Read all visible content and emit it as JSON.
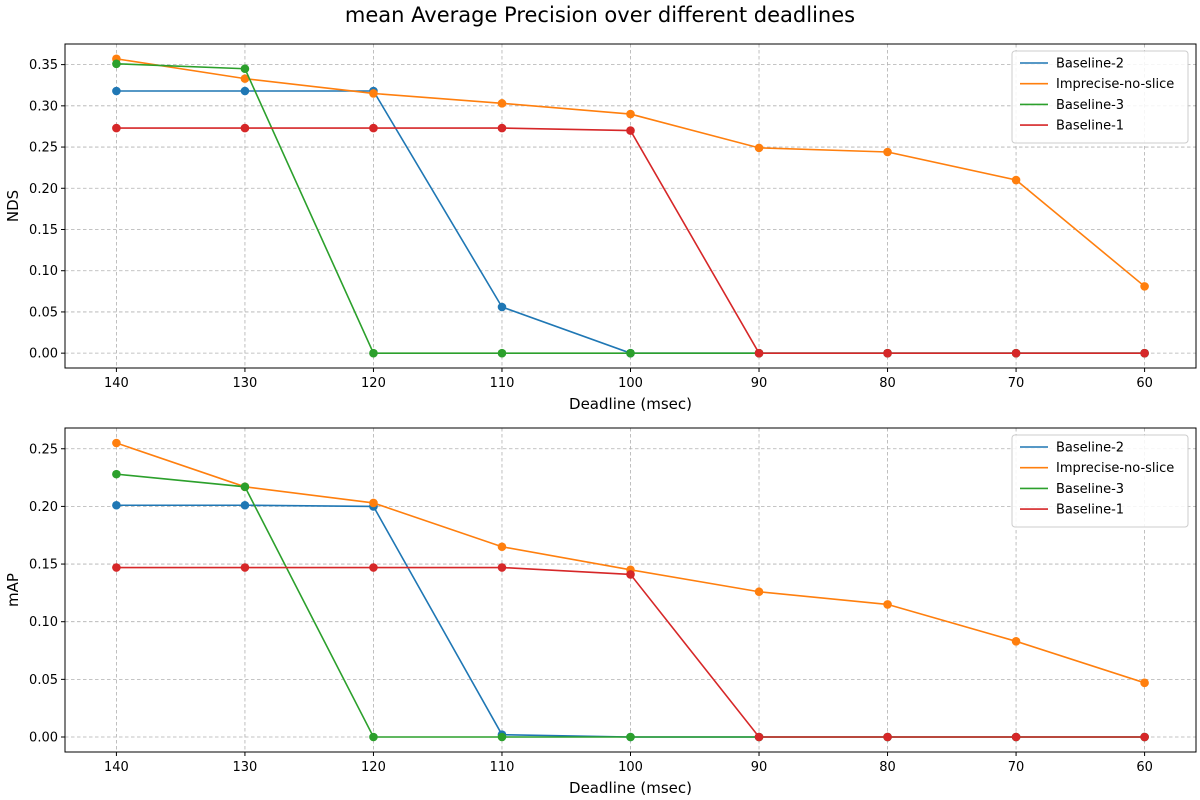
{
  "title": "mean Average Precision over different deadlines",
  "series_colors": {
    "Baseline-2": "#1f77b4",
    "Imprecise-no-slice": "#ff7f0e",
    "Baseline-3": "#2ca02c",
    "Baseline-1": "#d62728"
  },
  "chart_data": [
    {
      "type": "line",
      "xlabel": "Deadline (msec)",
      "ylabel": "NDS",
      "x": [
        140,
        130,
        120,
        110,
        100,
        90,
        80,
        70,
        60
      ],
      "x_tick_labels": [
        "140",
        "130",
        "120",
        "110",
        "100",
        "90",
        "80",
        "70",
        "60"
      ],
      "x_inverted": true,
      "ylim": [
        -0.018,
        0.375
      ],
      "y_ticks": [
        0.0,
        0.05,
        0.1,
        0.15,
        0.2,
        0.25,
        0.3,
        0.35
      ],
      "y_tick_labels": [
        "0.00",
        "0.05",
        "0.10",
        "0.15",
        "0.20",
        "0.25",
        "0.30",
        "0.35"
      ],
      "grid": true,
      "legend_position": "top-right",
      "series": [
        {
          "name": "Baseline-2",
          "values": [
            0.318,
            0.318,
            0.318,
            0.056,
            0.0,
            0.0,
            0.0,
            0.0,
            0.0
          ]
        },
        {
          "name": "Imprecise-no-slice",
          "values": [
            0.357,
            0.333,
            0.315,
            0.303,
            0.29,
            0.249,
            0.244,
            0.21,
            0.081
          ]
        },
        {
          "name": "Baseline-3",
          "values": [
            0.351,
            0.345,
            0.0,
            0.0,
            0.0,
            0.0,
            0.0,
            0.0,
            0.0
          ]
        },
        {
          "name": "Baseline-1",
          "values": [
            0.273,
            0.273,
            0.273,
            0.273,
            0.27,
            0.0,
            0.0,
            0.0,
            0.0
          ]
        }
      ]
    },
    {
      "type": "line",
      "xlabel": "Deadline (msec)",
      "ylabel": "mAP",
      "x": [
        140,
        130,
        120,
        110,
        100,
        90,
        80,
        70,
        60
      ],
      "x_tick_labels": [
        "140",
        "130",
        "120",
        "110",
        "100",
        "90",
        "80",
        "70",
        "60"
      ],
      "x_inverted": true,
      "ylim": [
        -0.013,
        0.268
      ],
      "y_ticks": [
        0.0,
        0.05,
        0.1,
        0.15,
        0.2,
        0.25
      ],
      "y_tick_labels": [
        "0.00",
        "0.05",
        "0.10",
        "0.15",
        "0.20",
        "0.25"
      ],
      "grid": true,
      "legend_position": "top-right",
      "series": [
        {
          "name": "Baseline-2",
          "values": [
            0.201,
            0.201,
            0.2,
            0.002,
            0.0,
            0.0,
            0.0,
            0.0,
            0.0
          ]
        },
        {
          "name": "Imprecise-no-slice",
          "values": [
            0.255,
            0.217,
            0.203,
            0.165,
            0.145,
            0.126,
            0.115,
            0.083,
            0.047
          ]
        },
        {
          "name": "Baseline-3",
          "values": [
            0.228,
            0.217,
            0.0,
            0.0,
            0.0,
            0.0,
            0.0,
            0.0,
            0.0
          ]
        },
        {
          "name": "Baseline-1",
          "values": [
            0.147,
            0.147,
            0.147,
            0.147,
            0.141,
            0.0,
            0.0,
            0.0,
            0.0
          ]
        }
      ]
    }
  ]
}
